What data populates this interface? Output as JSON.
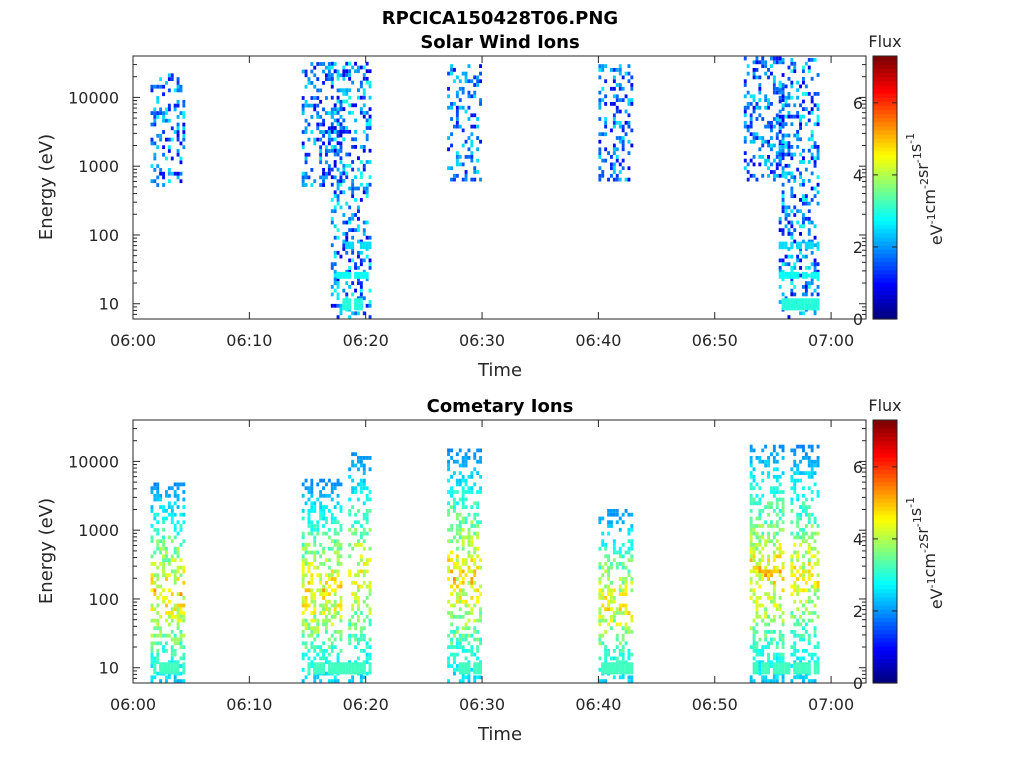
{
  "figure_title": "RPCICA150428T06.PNG",
  "chart_data": [
    {
      "type": "heatmap",
      "title": "Solar Wind Ions",
      "xlabel": "Time",
      "ylabel": "Energy (eV)",
      "y_scale": "log",
      "xlim": [
        "06:00",
        "07:03"
      ],
      "ylim": [
        6,
        40000
      ],
      "xtick_labels": [
        "06:00",
        "06:10",
        "06:20",
        "06:30",
        "06:40",
        "06:50",
        "07:00"
      ],
      "ytick_labels": [
        "10",
        "100",
        "1000",
        "10000"
      ],
      "grid": false,
      "colorbar": {
        "title": "Flux",
        "label_base": "eV",
        "label_tokens": [
          {
            "text": "eV",
            "sup": "-1"
          },
          {
            "text": "cm",
            "sup": "-2"
          },
          {
            "text": "sr",
            "sup": "-1"
          },
          {
            "text": "s",
            "sup": "-1"
          }
        ],
        "tick_labels": [
          "0",
          "2",
          "4",
          "6"
        ],
        "range": [
          0,
          7.3
        ],
        "colormap": "jet"
      },
      "bursts": [
        {
          "t_start": "06:01:30",
          "t_end": "06:04:30",
          "e_min": 500,
          "e_max": 22000,
          "flux_min": 0.8,
          "flux_max": 2.8
        },
        {
          "t_start": "06:14:30",
          "t_end": "06:18:00",
          "e_min": 500,
          "e_max": 30000,
          "flux_min": 0.8,
          "flux_max": 2.6
        },
        {
          "t_start": "06:17:00",
          "t_end": "06:20:30",
          "e_min": 6,
          "e_max": 32000,
          "flux_min": 0.6,
          "flux_max": 3.0
        },
        {
          "t_start": "06:27:00",
          "t_end": "06:30:00",
          "e_min": 600,
          "e_max": 30000,
          "flux_min": 0.8,
          "flux_max": 2.6
        },
        {
          "t_start": "06:40:00",
          "t_end": "06:43:00",
          "e_min": 600,
          "e_max": 30000,
          "flux_min": 0.8,
          "flux_max": 2.6
        },
        {
          "t_start": "06:52:30",
          "t_end": "06:56:00",
          "e_min": 600,
          "e_max": 35000,
          "flux_min": 0.8,
          "flux_max": 2.6
        },
        {
          "t_start": "06:55:30",
          "t_end": "06:59:00",
          "e_min": 6,
          "e_max": 35000,
          "flux_min": 0.6,
          "flux_max": 3.0
        }
      ],
      "bands": [
        {
          "t_start": "06:18:00",
          "t_end": "06:20:00",
          "e_min": 8,
          "e_max": 12,
          "flux": 3.0
        },
        {
          "t_start": "06:17:30",
          "t_end": "06:20:30",
          "e_min": 23,
          "e_max": 29,
          "flux": 2.8
        },
        {
          "t_start": "06:17:30",
          "t_end": "06:20:30",
          "e_min": 62,
          "e_max": 80,
          "flux": 2.5
        },
        {
          "t_start": "06:55:30",
          "t_end": "06:59:00",
          "e_min": 8,
          "e_max": 12,
          "flux": 3.0
        },
        {
          "t_start": "06:55:30",
          "t_end": "06:59:00",
          "e_min": 23,
          "e_max": 29,
          "flux": 2.8
        },
        {
          "t_start": "06:55:30",
          "t_end": "06:59:00",
          "e_min": 62,
          "e_max": 80,
          "flux": 2.5
        }
      ]
    },
    {
      "type": "heatmap",
      "title": "Cometary Ions",
      "xlabel": "Time",
      "ylabel": "Energy (eV)",
      "y_scale": "log",
      "xlim": [
        "06:00",
        "07:03"
      ],
      "ylim": [
        6,
        40000
      ],
      "xtick_labels": [
        "06:00",
        "06:10",
        "06:20",
        "06:30",
        "06:40",
        "06:50",
        "07:00"
      ],
      "ytick_labels": [
        "10",
        "100",
        "1000",
        "10000"
      ],
      "grid": false,
      "colorbar": {
        "title": "Flux",
        "label_base": "eV",
        "label_tokens": [
          {
            "text": "eV",
            "sup": "-1"
          },
          {
            "text": "cm",
            "sup": "-2"
          },
          {
            "text": "sr",
            "sup": "-1"
          },
          {
            "text": "s",
            "sup": "-1"
          }
        ],
        "tick_labels": [
          "0",
          "2",
          "4",
          "6"
        ],
        "range": [
          0,
          7.3
        ],
        "colormap": "jet"
      },
      "bursts": [
        {
          "t_start": "06:01:30",
          "t_end": "06:04:30",
          "e_min": 6,
          "e_max": 4500,
          "flux_min": 1.5,
          "flux_max": 5.5
        },
        {
          "t_start": "06:14:30",
          "t_end": "06:18:00",
          "e_min": 6,
          "e_max": 5000,
          "flux_min": 1.5,
          "flux_max": 5.5
        },
        {
          "t_start": "06:18:30",
          "t_end": "06:20:30",
          "e_min": 6,
          "e_max": 13000,
          "flux_min": 1.5,
          "flux_max": 5.2
        },
        {
          "t_start": "06:27:00",
          "t_end": "06:30:00",
          "e_min": 6,
          "e_max": 14000,
          "flux_min": 1.5,
          "flux_max": 5.5
        },
        {
          "t_start": "06:40:00",
          "t_end": "06:43:00",
          "e_min": 6,
          "e_max": 2000,
          "flux_min": 1.5,
          "flux_max": 5.3
        },
        {
          "t_start": "06:53:00",
          "t_end": "06:56:00",
          "e_min": 6,
          "e_max": 17000,
          "flux_min": 1.5,
          "flux_max": 5.5
        },
        {
          "t_start": "06:56:30",
          "t_end": "06:59:00",
          "e_min": 6,
          "e_max": 16000,
          "flux_min": 1.5,
          "flux_max": 5.2
        }
      ],
      "bands": [
        {
          "t_start": "06:01:30",
          "t_end": "06:04:30",
          "e_min": 8,
          "e_max": 12,
          "flux": 3.2
        },
        {
          "t_start": "06:15:00",
          "t_end": "06:20:30",
          "e_min": 8,
          "e_max": 12,
          "flux": 3.2
        },
        {
          "t_start": "06:28:00",
          "t_end": "06:30:00",
          "e_min": 8,
          "e_max": 12,
          "flux": 3.2
        },
        {
          "t_start": "06:40:00",
          "t_end": "06:43:00",
          "e_min": 8,
          "e_max": 12,
          "flux": 3.2
        },
        {
          "t_start": "06:53:00",
          "t_end": "06:59:00",
          "e_min": 8,
          "e_max": 12,
          "flux": 3.2
        }
      ]
    }
  ]
}
